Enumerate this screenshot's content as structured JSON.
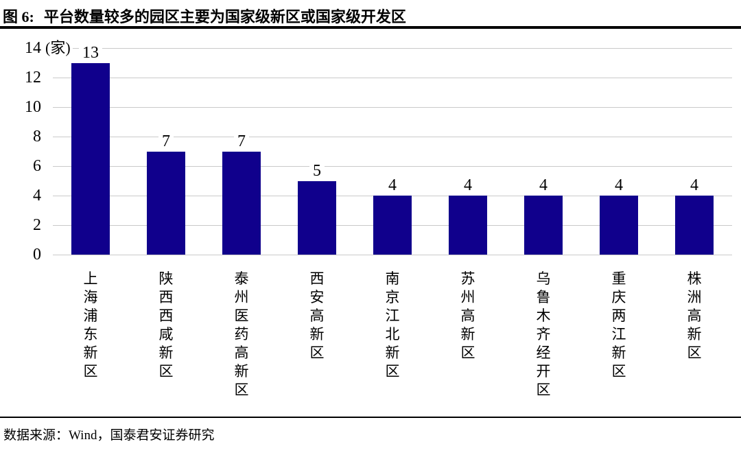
{
  "figure": {
    "label": "图 6:",
    "title": "平台数量较多的园区主要为国家级新区或国家级开发区"
  },
  "chart_data": {
    "type": "bar",
    "title": "平台数量较多的园区主要为国家级新区或国家级开发区",
    "unit_label": "(家)",
    "categories": [
      "上海浦东新区",
      "陕西西咸新区",
      "泰州医药高新区",
      "西安高新区",
      "南京江北新区",
      "苏州高新区",
      "乌鲁木齐经开区",
      "重庆两江新区",
      "株洲高新区"
    ],
    "values": [
      13,
      7,
      7,
      5,
      4,
      4,
      4,
      4,
      4
    ],
    "y_ticks": [
      0,
      2,
      4,
      6,
      8,
      10,
      12,
      14
    ],
    "ylim": [
      0,
      14
    ],
    "xlabel": "",
    "ylabel": "",
    "grid": "horizontal-light",
    "legend": "none",
    "category_label_orientation": "vertical-upright",
    "bar_color": "#10008C",
    "gridline_color": "#C9C9C9",
    "text_color": "#000000"
  },
  "footer": {
    "source": "数据来源：Wind，国泰君安证券研究"
  }
}
